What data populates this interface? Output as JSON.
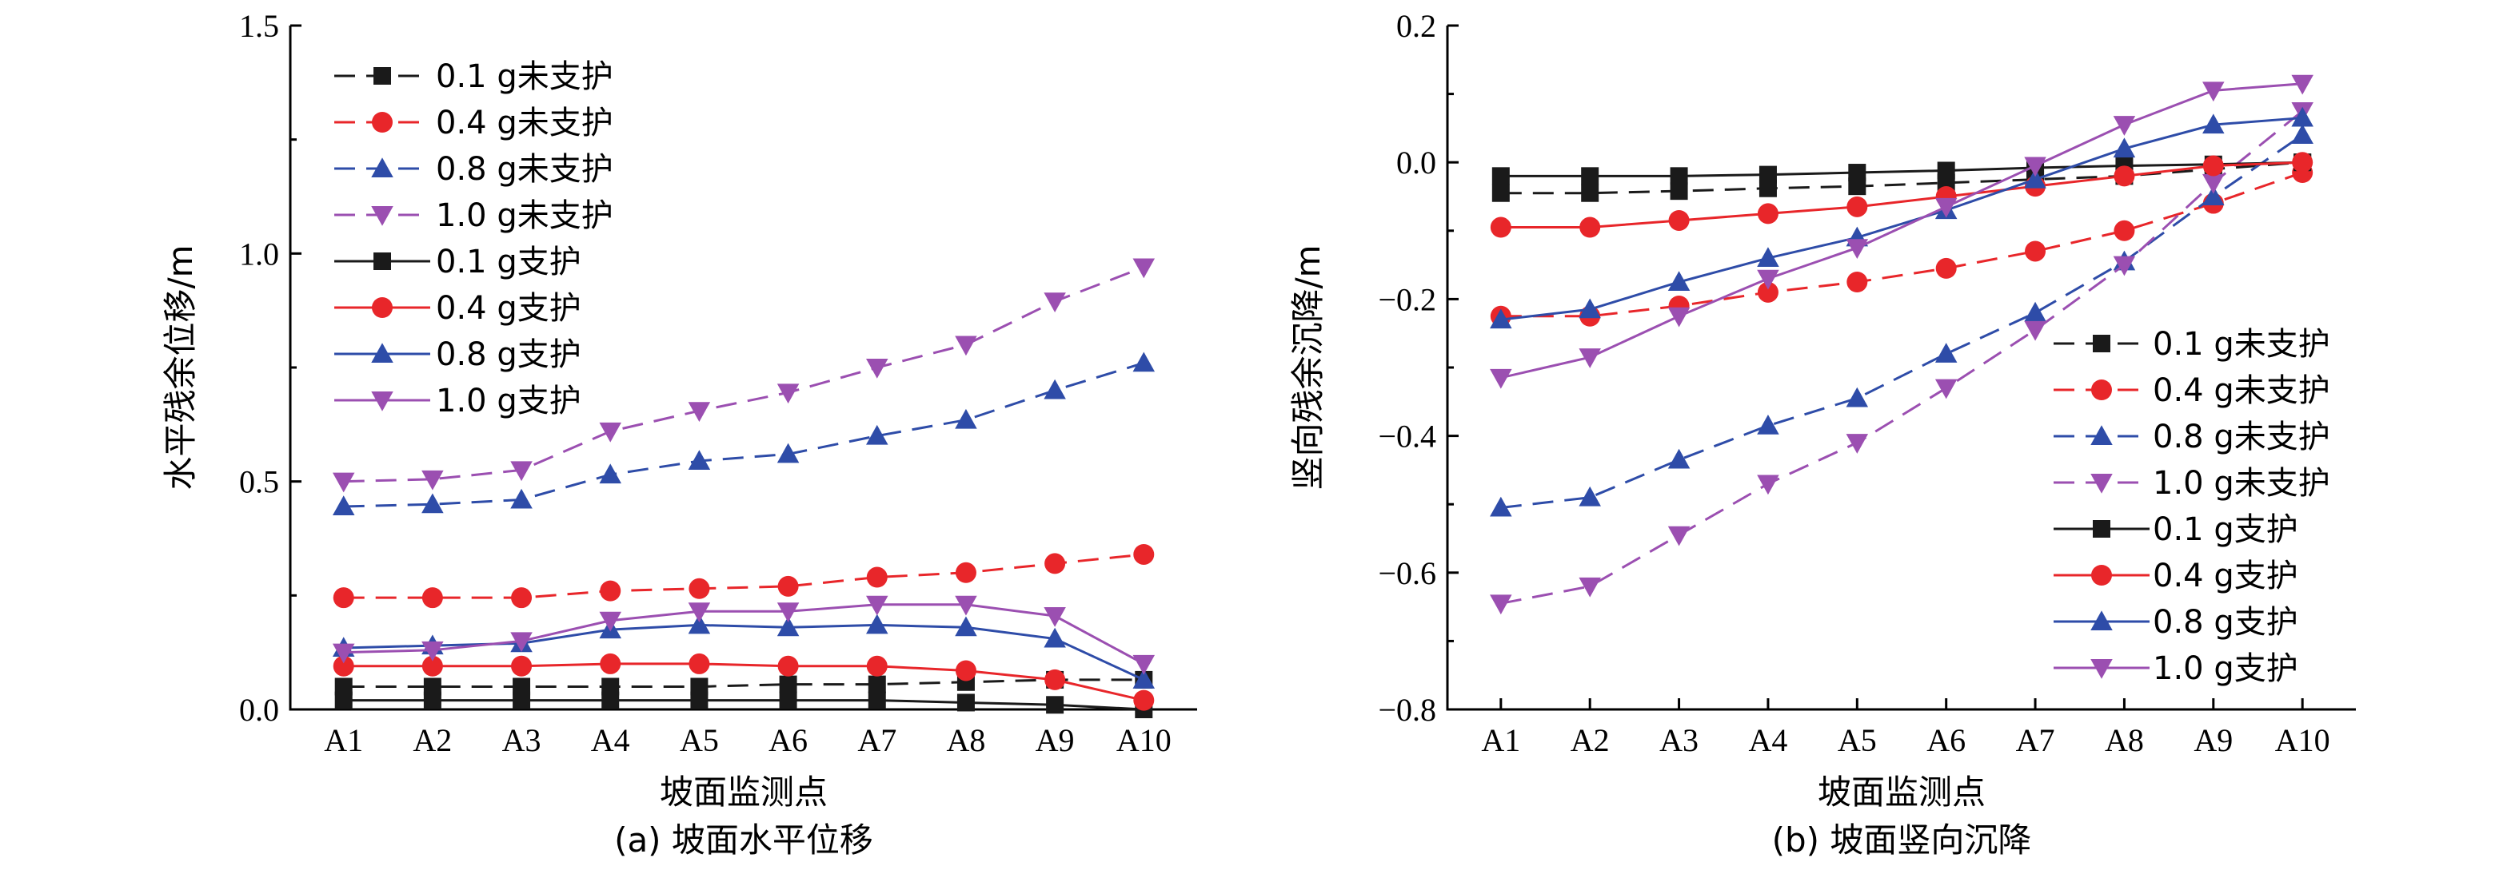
{
  "series_styles": [
    {
      "key": "01u",
      "color": "#1a1a1a",
      "dash": true,
      "marker": "square"
    },
    {
      "key": "04u",
      "color": "#e8262a",
      "dash": true,
      "marker": "circle"
    },
    {
      "key": "08u",
      "color": "#2e4ca8",
      "dash": true,
      "marker": "triangle-up"
    },
    {
      "key": "10u",
      "color": "#9b4fb1",
      "dash": true,
      "marker": "triangle-down"
    },
    {
      "key": "01s",
      "color": "#1a1a1a",
      "dash": false,
      "marker": "square"
    },
    {
      "key": "04s",
      "color": "#e8262a",
      "dash": false,
      "marker": "circle"
    },
    {
      "key": "08s",
      "color": "#2e4ca8",
      "dash": false,
      "marker": "triangle-up"
    },
    {
      "key": "10s",
      "color": "#9b4fb1",
      "dash": false,
      "marker": "triangle-down"
    }
  ],
  "chart_data": [
    {
      "type": "line",
      "caption": "(a) 坡面水平位移",
      "xlabel": "坡面监测点",
      "ylabel": "水平残余位移/m",
      "categories": [
        "A1",
        "A2",
        "A3",
        "A4",
        "A5",
        "A6",
        "A7",
        "A8",
        "A9",
        "A10"
      ],
      "ylim": [
        0.0,
        1.5
      ],
      "yticks": [
        "0.0",
        "0.5",
        "1.0",
        "1.5"
      ],
      "legend_position": "top-left",
      "series": [
        {
          "name": "0.1 g未支护",
          "values": [
            0.05,
            0.05,
            0.05,
            0.05,
            0.05,
            0.055,
            0.055,
            0.06,
            0.065,
            0.065
          ]
        },
        {
          "name": "0.4 g未支护",
          "values": [
            0.245,
            0.245,
            0.245,
            0.26,
            0.265,
            0.27,
            0.29,
            0.3,
            0.32,
            0.34
          ]
        },
        {
          "name": "0.8 g未支护",
          "values": [
            0.445,
            0.45,
            0.46,
            0.515,
            0.545,
            0.56,
            0.6,
            0.635,
            0.7,
            0.76
          ]
        },
        {
          "name": "1.0 g未支护",
          "values": [
            0.5,
            0.505,
            0.525,
            0.61,
            0.655,
            0.695,
            0.75,
            0.8,
            0.895,
            0.97
          ]
        },
        {
          "name": "0.1 g支护",
          "values": [
            0.02,
            0.02,
            0.02,
            0.02,
            0.02,
            0.02,
            0.02,
            0.015,
            0.01,
            0.0
          ]
        },
        {
          "name": "0.4 g支护",
          "values": [
            0.095,
            0.095,
            0.095,
            0.1,
            0.1,
            0.095,
            0.095,
            0.085,
            0.065,
            0.02
          ]
        },
        {
          "name": "0.8 g支护",
          "values": [
            0.135,
            0.14,
            0.145,
            0.175,
            0.185,
            0.18,
            0.185,
            0.18,
            0.155,
            0.065
          ]
        },
        {
          "name": "1.0 g支护",
          "values": [
            0.125,
            0.13,
            0.15,
            0.195,
            0.215,
            0.215,
            0.23,
            0.23,
            0.205,
            0.1
          ]
        }
      ]
    },
    {
      "type": "line",
      "caption": "(b) 坡面竖向沉降",
      "xlabel": "坡面监测点",
      "ylabel": "竖向残余沉降/m",
      "categories": [
        "A1",
        "A2",
        "A3",
        "A4",
        "A5",
        "A6",
        "A7",
        "A8",
        "A9",
        "A10"
      ],
      "ylim": [
        -0.8,
        0.2
      ],
      "yticks": [
        "−0.8",
        "−0.6",
        "−0.4",
        "−0.2",
        "0.0",
        "0.2"
      ],
      "legend_position": "bottom-right",
      "series": [
        {
          "name": "0.1 g未支护",
          "values": [
            -0.045,
            -0.045,
            -0.042,
            -0.038,
            -0.035,
            -0.03,
            -0.025,
            -0.02,
            -0.01,
            0.0
          ]
        },
        {
          "name": "0.4 g未支护",
          "values": [
            -0.225,
            -0.225,
            -0.21,
            -0.19,
            -0.175,
            -0.155,
            -0.13,
            -0.1,
            -0.06,
            -0.015
          ]
        },
        {
          "name": "0.8 g未支护",
          "values": [
            -0.505,
            -0.49,
            -0.435,
            -0.385,
            -0.345,
            -0.28,
            -0.22,
            -0.145,
            -0.05,
            0.04
          ]
        },
        {
          "name": "1.0 g未支护",
          "values": [
            -0.645,
            -0.62,
            -0.545,
            -0.47,
            -0.41,
            -0.33,
            -0.245,
            -0.15,
            -0.03,
            0.075
          ]
        },
        {
          "name": "0.1 g支护",
          "values": [
            -0.02,
            -0.02,
            -0.02,
            -0.018,
            -0.015,
            -0.012,
            -0.008,
            -0.005,
            -0.003,
            0.0
          ]
        },
        {
          "name": "0.4 g支护",
          "values": [
            -0.095,
            -0.095,
            -0.085,
            -0.075,
            -0.065,
            -0.05,
            -0.035,
            -0.02,
            -0.005,
            0.0
          ]
        },
        {
          "name": "0.8 g支护",
          "values": [
            -0.23,
            -0.215,
            -0.175,
            -0.14,
            -0.11,
            -0.07,
            -0.025,
            0.02,
            0.055,
            0.065
          ]
        },
        {
          "name": "1.0 g支护",
          "values": [
            -0.315,
            -0.285,
            -0.225,
            -0.17,
            -0.125,
            -0.065,
            -0.005,
            0.055,
            0.105,
            0.115
          ]
        }
      ]
    }
  ]
}
